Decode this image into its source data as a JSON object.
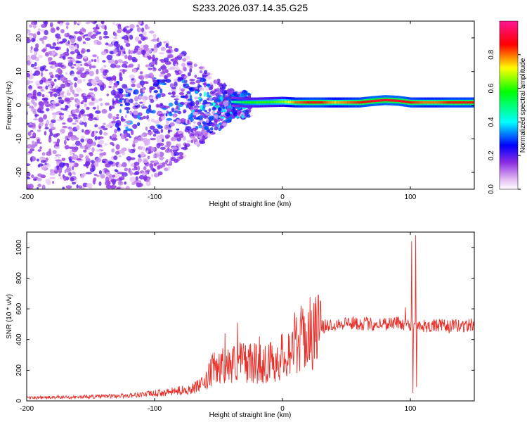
{
  "title": "S233.2026.037.14.35.G25",
  "chart_data": [
    {
      "type": "heatmap",
      "name": "spectrogram",
      "xlabel": "Height of straight line (km)",
      "ylabel": "Frequency (Hz)",
      "xlim": [
        -200,
        150
      ],
      "ylim": [
        -25,
        25
      ],
      "xticks": [
        -200,
        -100,
        0,
        100
      ],
      "yticks": [
        -20,
        -10,
        0,
        10,
        20
      ],
      "colorbar": {
        "label": "Normalized spectral amplitude",
        "range": [
          0,
          1
        ],
        "ticks": [
          "0.0",
          "0.2",
          "0.4",
          "0.6",
          "0.8"
        ],
        "colors": [
          "#ffffff",
          "#e9c9f5",
          "#8a2be2",
          "#0000ff",
          "#00ffff",
          "#00ff00",
          "#ffff00",
          "#ff0000",
          "#ff1493"
        ]
      },
      "ridge": {
        "description": "narrow high-amplitude band near 0-1 Hz",
        "x": [
          -40,
          -30,
          -20,
          -10,
          0,
          10,
          20,
          30,
          40,
          50,
          60,
          70,
          80,
          90,
          100,
          110,
          120,
          130,
          140,
          150
        ],
        "freq": [
          1.0,
          0.8,
          0.8,
          0.9,
          1.0,
          0.8,
          0.8,
          0.8,
          0.8,
          0.8,
          0.8,
          1.2,
          1.5,
          1.3,
          0.8,
          0.8,
          0.8,
          0.8,
          0.8,
          0.8
        ],
        "amplitude": [
          0.45,
          0.55,
          0.6,
          0.6,
          0.65,
          0.8,
          0.85,
          0.85,
          0.75,
          0.8,
          0.85,
          0.9,
          0.9,
          0.9,
          0.85,
          0.8,
          0.8,
          0.85,
          0.85,
          0.85
        ]
      }
    },
    {
      "type": "line",
      "name": "snr",
      "xlabel": "Height of straight line (km)",
      "ylabel": "SNR (10 * v/v)",
      "xlim": [
        -200,
        150
      ],
      "ylim": [
        0,
        1100
      ],
      "xticks": [
        -200,
        -100,
        0,
        100
      ],
      "yticks": [
        0,
        200,
        400,
        600,
        800,
        1000
      ],
      "color": "#e8302a",
      "envelope": {
        "x": [
          -200,
          -160,
          -120,
          -90,
          -70,
          -60,
          -55,
          -50,
          -40,
          -30,
          -20,
          -10,
          0,
          10,
          20,
          30,
          40,
          50,
          60,
          70,
          80,
          90,
          95,
          100,
          103,
          106,
          110,
          120,
          130,
          140,
          150
        ],
        "y": [
          20,
          25,
          35,
          55,
          80,
          120,
          200,
          220,
          240,
          260,
          240,
          250,
          290,
          380,
          430,
          480,
          500,
          510,
          505,
          500,
          505,
          510,
          500,
          500,
          480,
          500,
          490,
          490,
          485,
          490,
          495
        ]
      },
      "spikes": [
        {
          "x": -45,
          "y": 440
        },
        {
          "x": -35,
          "y": 510
        },
        {
          "x": -18,
          "y": 420
        },
        {
          "x": 96,
          "y": 610
        },
        {
          "x": 101,
          "y": 1040
        },
        {
          "x": 104,
          "y": 1080
        },
        {
          "x": 102,
          "y": 50
        },
        {
          "x": 105,
          "y": 90
        }
      ]
    }
  ]
}
